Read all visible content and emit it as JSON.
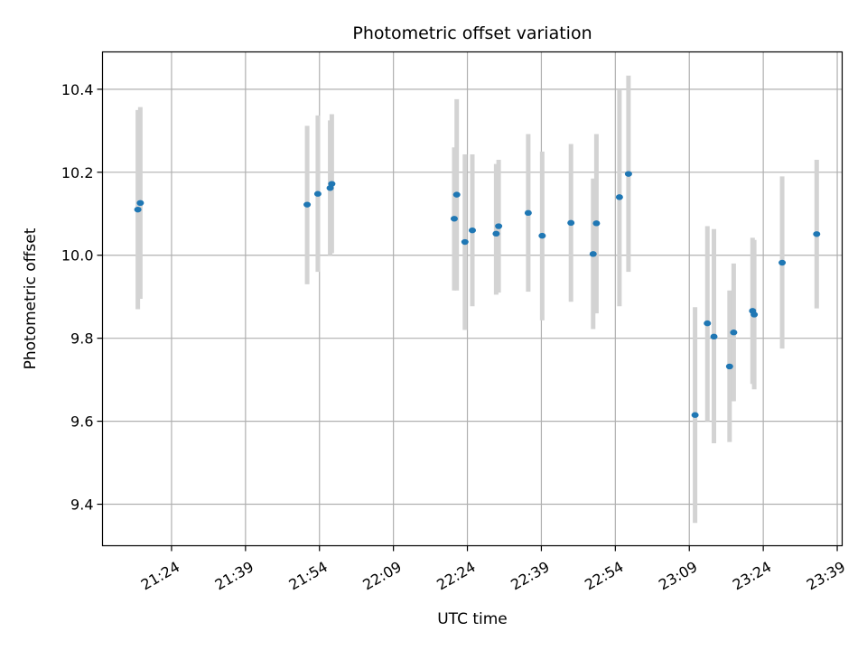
{
  "chart_data": {
    "type": "scatter",
    "title": "Photometric offset variation",
    "xlabel": "UTC time",
    "ylabel": "Photometric offset",
    "x_ticks": [
      "21:24",
      "21:39",
      "21:54",
      "22:09",
      "22:24",
      "22:39",
      "22:54",
      "23:09",
      "23:24",
      "23:39"
    ],
    "y_ticks": [
      "9.4",
      "9.6",
      "9.8",
      "10.0",
      "10.2",
      "10.4"
    ],
    "xlim": [
      "21:10",
      "23:40"
    ],
    "ylim": [
      9.3,
      10.49
    ],
    "grid": true,
    "point_color": "#1f77b4",
    "errorbar_color": "#d3d3d3",
    "points": [
      {
        "x": "21:17:10",
        "y": 10.11,
        "low": 9.87,
        "high": 10.35
      },
      {
        "x": "21:17:40",
        "y": 10.126,
        "low": 9.895,
        "high": 10.357
      },
      {
        "x": "21:51:30",
        "y": 10.122,
        "low": 9.93,
        "high": 10.312
      },
      {
        "x": "21:53:40",
        "y": 10.148,
        "low": 9.96,
        "high": 10.337
      },
      {
        "x": "21:56:10",
        "y": 10.162,
        "low": 10.0,
        "high": 10.325
      },
      {
        "x": "21:56:30",
        "y": 10.172,
        "low": 10.005,
        "high": 10.34
      },
      {
        "x": "22:21:20",
        "y": 10.088,
        "low": 9.915,
        "high": 10.26
      },
      {
        "x": "22:21:50",
        "y": 10.146,
        "low": 9.915,
        "high": 10.376
      },
      {
        "x": "22:23:30",
        "y": 10.032,
        "low": 9.82,
        "high": 10.243
      },
      {
        "x": "22:25:00",
        "y": 10.06,
        "low": 9.877,
        "high": 10.243
      },
      {
        "x": "22:29:50",
        "y": 10.052,
        "low": 9.905,
        "high": 10.22
      },
      {
        "x": "22:30:20",
        "y": 10.07,
        "low": 9.91,
        "high": 10.23
      },
      {
        "x": "22:36:20",
        "y": 10.102,
        "low": 9.912,
        "high": 10.292
      },
      {
        "x": "22:39:10",
        "y": 10.047,
        "low": 9.843,
        "high": 10.25
      },
      {
        "x": "22:45:00",
        "y": 10.078,
        "low": 9.888,
        "high": 10.268
      },
      {
        "x": "22:49:30",
        "y": 10.003,
        "low": 9.822,
        "high": 10.185
      },
      {
        "x": "22:50:10",
        "y": 10.077,
        "low": 9.86,
        "high": 10.292
      },
      {
        "x": "22:54:50",
        "y": 10.14,
        "low": 9.877,
        "high": 10.4
      },
      {
        "x": "22:56:40",
        "y": 10.196,
        "low": 9.96,
        "high": 10.433
      },
      {
        "x": "23:10:10",
        "y": 9.615,
        "low": 9.355,
        "high": 9.875
      },
      {
        "x": "23:12:40",
        "y": 9.836,
        "low": 9.6,
        "high": 10.07
      },
      {
        "x": "23:14:00",
        "y": 9.804,
        "low": 9.547,
        "high": 10.063
      },
      {
        "x": "23:17:10",
        "y": 9.732,
        "low": 9.55,
        "high": 9.915
      },
      {
        "x": "23:18:00",
        "y": 9.814,
        "low": 9.648,
        "high": 9.98
      },
      {
        "x": "23:21:50",
        "y": 9.866,
        "low": 9.69,
        "high": 10.042
      },
      {
        "x": "23:22:10",
        "y": 9.857,
        "low": 9.677,
        "high": 10.037
      },
      {
        "x": "23:27:50",
        "y": 9.982,
        "low": 9.775,
        "high": 10.19
      },
      {
        "x": "23:34:50",
        "y": 10.051,
        "low": 9.872,
        "high": 10.23
      }
    ]
  }
}
